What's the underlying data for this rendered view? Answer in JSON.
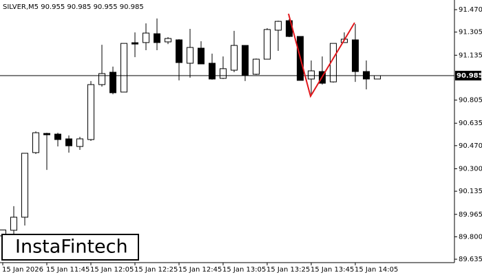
{
  "chart_data": {
    "type": "candlestick",
    "title": "SILVER,M5  90.955 90.985 90.955 90.985",
    "watermark": "InstaFintech",
    "categories": [
      "15 Jan 2026",
      null,
      null,
      null,
      "15 Jan 11:45",
      null,
      null,
      null,
      "15 Jan 12:05",
      null,
      null,
      null,
      "15 Jan 12:25",
      null,
      null,
      null,
      "15 Jan 12:45",
      null,
      null,
      null,
      "15 Jan 13:05",
      null,
      null,
      null,
      "15 Jan 13:25",
      null,
      null,
      null,
      "15 Jan 13:45",
      null,
      null,
      null,
      "15 Jan 14:05",
      null,
      null
    ],
    "open": [
      89.807,
      89.848,
      89.944,
      90.419,
      90.56,
      90.555,
      90.52,
      90.464,
      90.515,
      90.919,
      91.01,
      90.864,
      91.227,
      91.228,
      91.293,
      91.233,
      91.248,
      91.076,
      91.187,
      91.076,
      90.965,
      91.025,
      91.207,
      90.995,
      91.106,
      91.319,
      91.389,
      91.273,
      90.96,
      91.015,
      90.939,
      91.228,
      91.248,
      91.015,
      90.96
    ],
    "high": [
      89.85,
      90.025,
      90.414,
      90.575,
      90.565,
      90.565,
      90.545,
      90.535,
      90.945,
      91.212,
      91.051,
      91.222,
      91.303,
      91.369,
      91.405,
      91.268,
      91.253,
      91.329,
      91.238,
      91.147,
      91.126,
      91.314,
      91.207,
      91.111,
      91.334,
      91.389,
      91.4,
      91.273,
      91.096,
      91.126,
      91.222,
      91.303,
      91.364,
      91.096,
      90.985
    ],
    "low": [
      89.79,
      89.822,
      89.883,
      90.409,
      90.292,
      90.464,
      90.419,
      90.439,
      90.505,
      90.904,
      90.848,
      90.864,
      91.121,
      91.172,
      91.172,
      91.217,
      90.95,
      90.97,
      91.071,
      90.955,
      90.96,
      91.01,
      90.945,
      90.99,
      91.106,
      91.167,
      91.268,
      90.95,
      90.838,
      90.919,
      90.934,
      91.228,
      90.939,
      90.884,
      90.96
    ],
    "close": [
      89.85,
      89.944,
      90.414,
      90.565,
      90.55,
      90.515,
      90.469,
      90.52,
      90.919,
      91.0,
      90.859,
      91.222,
      91.217,
      91.298,
      91.228,
      91.258,
      91.081,
      91.192,
      91.071,
      90.96,
      91.036,
      91.207,
      90.99,
      91.106,
      91.324,
      91.384,
      91.273,
      90.95,
      91.02,
      90.929,
      91.222,
      91.253,
      91.015,
      90.96,
      90.985
    ],
    "up_color": "#ffffff",
    "down_color": "#000000",
    "current_price": 90.985,
    "ylim": [
      89.61,
      91.541
    ],
    "yticks": [
      {
        "value": 91.47,
        "label": "91.470"
      },
      91.305,
      91.135,
      90.805,
      90.635,
      {
        "value": 90.47,
        "label": "90.470"
      },
      {
        "value": 90.3,
        "label": "90.300"
      },
      90.135,
      89.965,
      {
        "value": 89.8,
        "label": "89.800"
      },
      89.635
    ],
    "grid": false
  }
}
